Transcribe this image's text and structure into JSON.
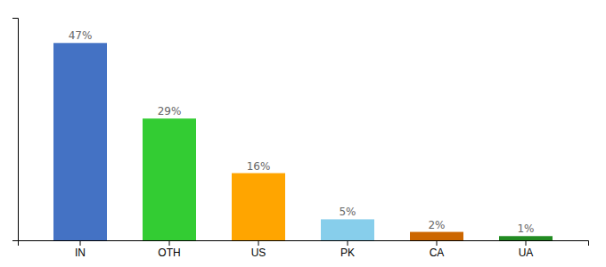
{
  "chart_data": {
    "type": "bar",
    "categories": [
      "IN",
      "OTH",
      "US",
      "PK",
      "CA",
      "UA"
    ],
    "values": [
      47,
      29,
      16,
      5,
      2,
      1
    ],
    "value_labels": [
      "47%",
      "29%",
      "16%",
      "5%",
      "2%",
      "1%"
    ],
    "colors": [
      "#4472C4",
      "#33CC33",
      "#FFA500",
      "#87CEEB",
      "#CC6600",
      "#228B22"
    ],
    "ylim": [
      0,
      53
    ],
    "data_labels": true,
    "grid": false,
    "tick_labels": "x"
  }
}
